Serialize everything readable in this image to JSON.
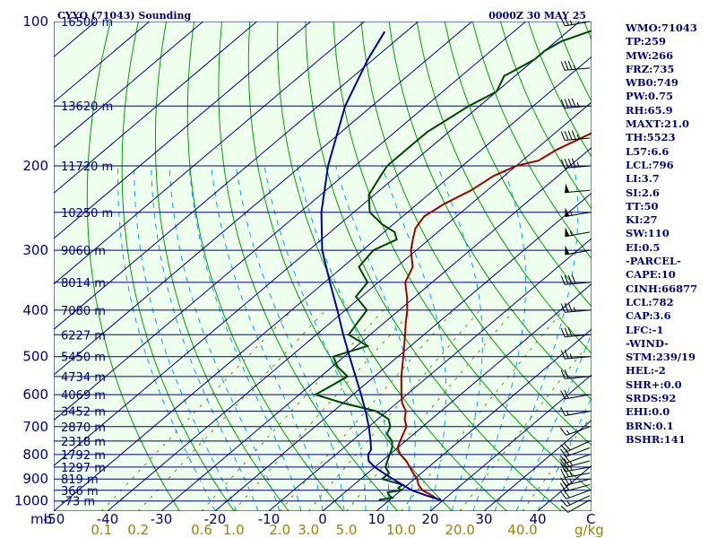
{
  "header": {
    "station": "CYYQ (71043) Sounding",
    "time": "0000Z 30 MAY 25"
  },
  "chart_data": {
    "type": "line",
    "title": "CYYQ (71043) Sounding",
    "subtitle": "0000Z 30 MAY 25",
    "x_unit_label": "C",
    "pressure_axis_label": "mb",
    "mixing_ratio_unit": "g/kg",
    "pressure_ticks": [
      100,
      200,
      300,
      400,
      500,
      600,
      700,
      800,
      900,
      1000
    ],
    "temp_ticks": [
      -50,
      -40,
      -30,
      -20,
      -10,
      0,
      10,
      20,
      30,
      40
    ],
    "mixing_ratio_labels": [
      "0.1",
      "0.2",
      "0.6",
      "1.0",
      "2.0",
      "3.0",
      "5.0",
      "10.0",
      "20.0",
      "40.0"
    ],
    "plim": [
      1050,
      100
    ],
    "tlim_at_1050": [
      -50,
      50
    ],
    "height_labels": [
      {
        "p": 100,
        "label": "16500 m"
      },
      {
        "p": 150,
        "label": "13620 m"
      },
      {
        "p": 200,
        "label": "11720 m"
      },
      {
        "p": 250,
        "label": "10250 m"
      },
      {
        "p": 300,
        "label": "9060 m"
      },
      {
        "p": 350,
        "label": "8014 m"
      },
      {
        "p": 400,
        "label": "7080 m"
      },
      {
        "p": 450,
        "label": "6227 m"
      },
      {
        "p": 500,
        "label": "5450 m"
      },
      {
        "p": 550,
        "label": "4734 m"
      },
      {
        "p": 600,
        "label": "4069 m"
      },
      {
        "p": 650,
        "label": "3452 m"
      },
      {
        "p": 700,
        "label": "2870 m"
      },
      {
        "p": 750,
        "label": "2318 m"
      },
      {
        "p": 800,
        "label": "1792 m"
      },
      {
        "p": 850,
        "label": "1297 m"
      },
      {
        "p": 900,
        "label": "819 m"
      },
      {
        "p": 950,
        "label": "366 m"
      },
      {
        "p": 1000,
        "label": "-73 m"
      }
    ],
    "series": [
      {
        "name": "Temperature",
        "color": "#a00000",
        "points": [
          [
            995,
            19.5
          ],
          [
            990,
            18.5
          ],
          [
            975,
            17
          ],
          [
            950,
            14
          ],
          [
            925,
            12
          ],
          [
            900,
            10.5
          ],
          [
            875,
            8.5
          ],
          [
            850,
            6.5
          ],
          [
            825,
            4.5
          ],
          [
            800,
            2
          ],
          [
            775,
            0
          ],
          [
            750,
            -1
          ],
          [
            725,
            -2
          ],
          [
            700,
            -3
          ],
          [
            675,
            -5
          ],
          [
            650,
            -6.5
          ],
          [
            625,
            -9
          ],
          [
            600,
            -11
          ],
          [
            550,
            -15
          ],
          [
            500,
            -19
          ],
          [
            450,
            -23.5
          ],
          [
            425,
            -26
          ],
          [
            400,
            -28.5
          ],
          [
            375,
            -31.5
          ],
          [
            350,
            -35
          ],
          [
            325,
            -37
          ],
          [
            300,
            -41
          ],
          [
            285,
            -43
          ],
          [
            270,
            -45
          ],
          [
            255,
            -46
          ],
          [
            240,
            -45
          ],
          [
            225,
            -43
          ],
          [
            210,
            -42
          ],
          [
            200,
            -40
          ],
          [
            195,
            -37
          ],
          [
            185,
            -36
          ],
          [
            170,
            -33
          ],
          [
            160,
            -33.5
          ],
          [
            150,
            -33
          ],
          [
            140,
            -32
          ],
          [
            130,
            -32
          ],
          [
            120,
            -30
          ],
          [
            110,
            -32
          ],
          [
            100,
            -29
          ]
        ]
      },
      {
        "name": "Dewpoint",
        "color": "#004400",
        "points": [
          [
            995,
            8
          ],
          [
            985,
            10
          ],
          [
            975,
            9
          ],
          [
            960,
            8
          ],
          [
            950,
            10
          ],
          [
            940,
            9
          ],
          [
            925,
            9
          ],
          [
            900,
            4
          ],
          [
            875,
            4
          ],
          [
            850,
            2
          ],
          [
            825,
            1
          ],
          [
            800,
            0
          ],
          [
            775,
            -1
          ],
          [
            750,
            -2.5
          ],
          [
            725,
            -5
          ],
          [
            700,
            -6
          ],
          [
            675,
            -8
          ],
          [
            650,
            -12
          ],
          [
            625,
            -20
          ],
          [
            600,
            -27
          ],
          [
            575,
            -26
          ],
          [
            550,
            -25
          ],
          [
            525,
            -29
          ],
          [
            500,
            -32
          ],
          [
            475,
            -28
          ],
          [
            450,
            -34
          ],
          [
            425,
            -35
          ],
          [
            400,
            -36
          ],
          [
            375,
            -41
          ],
          [
            350,
            -42
          ],
          [
            325,
            -47
          ],
          [
            300,
            -48
          ],
          [
            285,
            -46
          ],
          [
            275,
            -48
          ],
          [
            265,
            -52
          ],
          [
            250,
            -57
          ],
          [
            230,
            -61
          ],
          [
            210,
            -63
          ],
          [
            200,
            -64
          ],
          [
            190,
            -64
          ],
          [
            180,
            -64
          ],
          [
            170,
            -64
          ],
          [
            160,
            -63
          ],
          [
            150,
            -62
          ],
          [
            140,
            -60
          ],
          [
            130,
            -62
          ],
          [
            125,
            -61
          ],
          [
            120,
            -60
          ],
          [
            115,
            -60
          ],
          [
            110,
            -59
          ],
          [
            105,
            -56
          ],
          [
            100,
            -53
          ]
        ]
      },
      {
        "name": "Parcel",
        "color": "#0000a0",
        "points": [
          [
            995,
            19.5
          ],
          [
            975,
            16
          ],
          [
            950,
            12
          ],
          [
            925,
            9
          ],
          [
            900,
            6
          ],
          [
            875,
            3
          ],
          [
            850,
            0
          ],
          [
            825,
            -2.5
          ],
          [
            800,
            -4
          ],
          [
            782,
            -4.5
          ],
          [
            750,
            -6.5
          ],
          [
            700,
            -10
          ],
          [
            650,
            -14
          ],
          [
            600,
            -18.5
          ],
          [
            550,
            -23.5
          ],
          [
            500,
            -29
          ],
          [
            450,
            -35
          ],
          [
            400,
            -41.5
          ],
          [
            350,
            -49
          ],
          [
            300,
            -57.5
          ],
          [
            250,
            -66
          ],
          [
            200,
            -75
          ],
          [
            150,
            -85
          ],
          [
            120,
            -91
          ],
          [
            105,
            -94
          ]
        ]
      }
    ],
    "wind_barbs": [
      {
        "p": 995,
        "dir": 240,
        "spd": 10
      },
      {
        "p": 975,
        "dir": 245,
        "spd": 15
      },
      {
        "p": 950,
        "dir": 250,
        "spd": 20
      },
      {
        "p": 925,
        "dir": 255,
        "spd": 20
      },
      {
        "p": 900,
        "dir": 255,
        "spd": 25
      },
      {
        "p": 875,
        "dir": 260,
        "spd": 25
      },
      {
        "p": 850,
        "dir": 260,
        "spd": 25
      },
      {
        "p": 825,
        "dir": 255,
        "spd": 25
      },
      {
        "p": 800,
        "dir": 250,
        "spd": 20
      },
      {
        "p": 775,
        "dir": 250,
        "spd": 20
      },
      {
        "p": 750,
        "dir": 245,
        "spd": 20
      },
      {
        "p": 700,
        "dir": 250,
        "spd": 15
      },
      {
        "p": 650,
        "dir": 260,
        "spd": 15
      },
      {
        "p": 600,
        "dir": 260,
        "spd": 20
      },
      {
        "p": 550,
        "dir": 265,
        "spd": 20
      },
      {
        "p": 500,
        "dir": 265,
        "spd": 25
      },
      {
        "p": 450,
        "dir": 265,
        "spd": 30
      },
      {
        "p": 400,
        "dir": 265,
        "spd": 35
      },
      {
        "p": 350,
        "dir": 265,
        "spd": 40
      },
      {
        "p": 300,
        "dir": 260,
        "spd": 50
      },
      {
        "p": 275,
        "dir": 260,
        "spd": 55
      },
      {
        "p": 250,
        "dir": 260,
        "spd": 55
      },
      {
        "p": 225,
        "dir": 265,
        "spd": 50
      },
      {
        "p": 200,
        "dir": 265,
        "spd": 45
      },
      {
        "p": 175,
        "dir": 265,
        "spd": 45
      },
      {
        "p": 150,
        "dir": 265,
        "spd": 45
      },
      {
        "p": 125,
        "dir": 265,
        "spd": 35
      },
      {
        "p": 100,
        "dir": 260,
        "spd": 25
      }
    ]
  },
  "indices": [
    "WMO:71043",
    "TP:259",
    "MW:266",
    "FRZ:735",
    "WB0:749",
    "PW:0.75",
    "RH:65.9",
    "MAXT:21.0",
    "TH:5523",
    "L57:6.6",
    "LCL:796",
    "LI:3.7",
    "SI:2.6",
    "TT:50",
    "KI:27",
    "SW:110",
    "EI:0.5",
    "-PARCEL-",
    "CAPE:10",
    "CINH:66877",
    "LCL:782",
    "CAP:3.6",
    "LFC:-1",
    "-WIND-",
    "STM:239/19",
    "HEL:-2",
    "SHR+:0.0",
    "SRDS:92",
    "EHI:0.0",
    "BRN:0.1",
    "BSHR:141"
  ],
  "colors": {
    "isobar": "#000080",
    "isotherm": "#000080",
    "dry_adiabat": "#00a000",
    "moist_adiabat": "#00a0ff",
    "mixing_ratio": "#808000",
    "temperature": "#a00000",
    "dewpoint": "#004400",
    "parcel": "#0000a0"
  }
}
